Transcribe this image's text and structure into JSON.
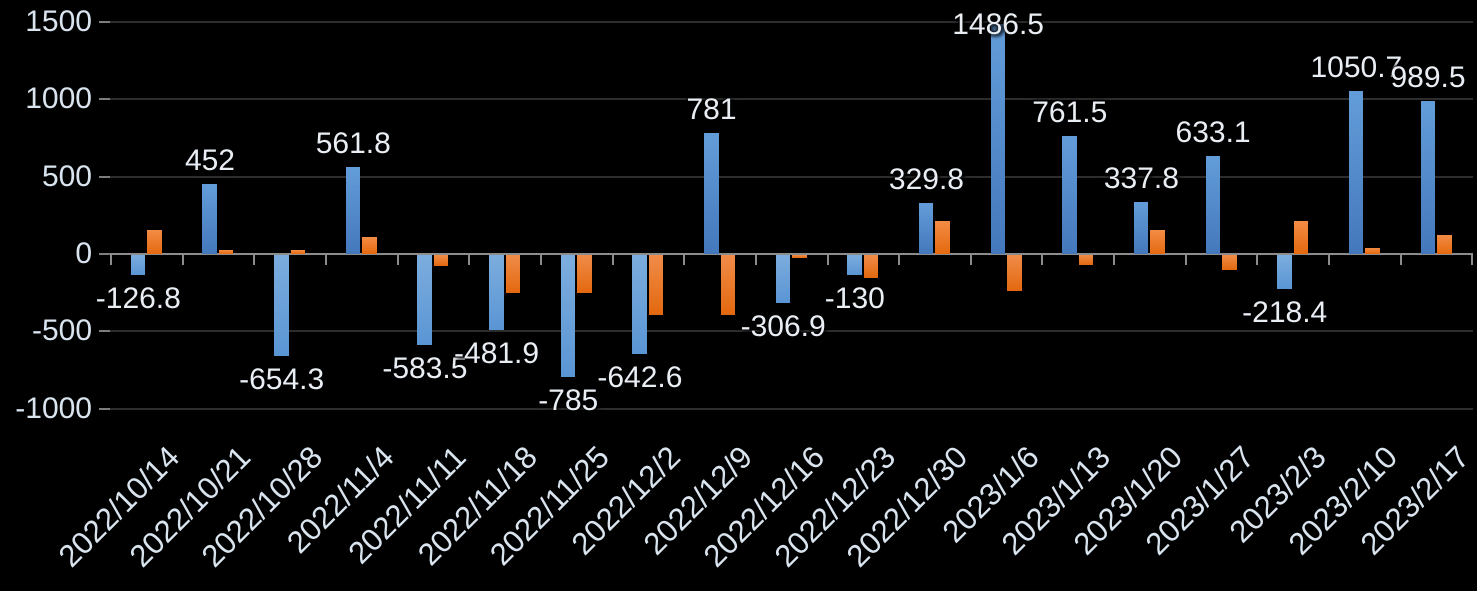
{
  "chart_data": {
    "type": "bar",
    "title": "",
    "legend": "none",
    "grid": true,
    "background": "#000000",
    "categories": [
      "2022/10/14",
      "2022/10/21",
      "2022/10/28",
      "2022/11/4",
      "2022/11/11",
      "2022/11/18",
      "2022/11/25",
      "2022/12/2",
      "2022/12/9",
      "2022/12/16",
      "2022/12/23",
      "2022/12/30",
      "2023/1/6",
      "2023/1/13",
      "2023/1/20",
      "2023/1/27",
      "2023/2/3",
      "2023/2/10",
      "2023/2/17"
    ],
    "series": [
      {
        "name": "blue-series",
        "color": "#5b9bd5",
        "values": [
          -126.8,
          452,
          -654.3,
          561.8,
          -583.5,
          -481.9,
          -785,
          -642.6,
          781,
          -306.9,
          -130,
          329.8,
          1486.5,
          761.5,
          337.8,
          633.1,
          -218.4,
          1050.7,
          989.5
        ],
        "data_labels": [
          "-126.8",
          "452",
          "-654.3",
          "561.8",
          "-583.5",
          "-481.9",
          "-785",
          "-642.6",
          "781",
          "-306.9",
          "-130",
          "329.8",
          "1486.5",
          "761.5",
          "337.8",
          "633.1",
          "-218.4",
          "1050.7",
          "989.5"
        ]
      },
      {
        "name": "orange-series",
        "color": "#ed7d31",
        "values": [
          155,
          25,
          28,
          110,
          -70,
          -245,
          -245,
          -390,
          -390,
          -20,
          -150,
          215,
          -230,
          -65,
          155,
          -100,
          215,
          40,
          125
        ],
        "data_labels": []
      }
    ],
    "y_axis": {
      "tick_labels": [
        "1500",
        "1000",
        "500",
        "0",
        "-500",
        "-1000"
      ],
      "tick_values": [
        1500,
        1000,
        500,
        0,
        -500,
        -1000
      ],
      "min": -1000,
      "max": 1500
    },
    "x_axis": {
      "label_rotation_deg": -45
    }
  }
}
